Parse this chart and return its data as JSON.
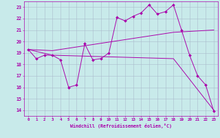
{
  "xlabel": "Windchill (Refroidissement éolien,°C)",
  "bg_color": "#c8eaea",
  "line_color": "#aa00aa",
  "grid_color": "#aabbcc",
  "xlim": [
    -0.5,
    23.5
  ],
  "ylim": [
    13.5,
    23.5
  ],
  "yticks": [
    14,
    15,
    16,
    17,
    18,
    19,
    20,
    21,
    22,
    23
  ],
  "xticks": [
    0,
    1,
    2,
    3,
    4,
    5,
    6,
    7,
    8,
    9,
    10,
    11,
    12,
    13,
    14,
    15,
    16,
    17,
    18,
    19,
    20,
    21,
    22,
    23
  ],
  "series": [
    {
      "x": [
        0,
        1,
        2,
        3,
        4,
        5,
        6,
        7,
        8,
        9,
        10,
        11,
        12,
        13,
        14,
        15,
        16,
        17,
        18,
        19,
        20,
        21,
        22,
        23
      ],
      "y": [
        19.3,
        18.5,
        18.8,
        18.8,
        18.4,
        16.0,
        16.2,
        19.8,
        18.4,
        18.5,
        19.0,
        22.1,
        21.8,
        22.2,
        22.5,
        23.2,
        22.4,
        22.6,
        23.2,
        21.0,
        18.8,
        17.0,
        16.2,
        13.9
      ],
      "marker": true
    },
    {
      "x": [
        0,
        3,
        18,
        23
      ],
      "y": [
        19.3,
        19.2,
        20.8,
        21.0
      ],
      "marker": false
    },
    {
      "x": [
        0,
        3,
        18,
        23
      ],
      "y": [
        19.3,
        18.8,
        18.5,
        14.0
      ],
      "marker": false
    }
  ]
}
